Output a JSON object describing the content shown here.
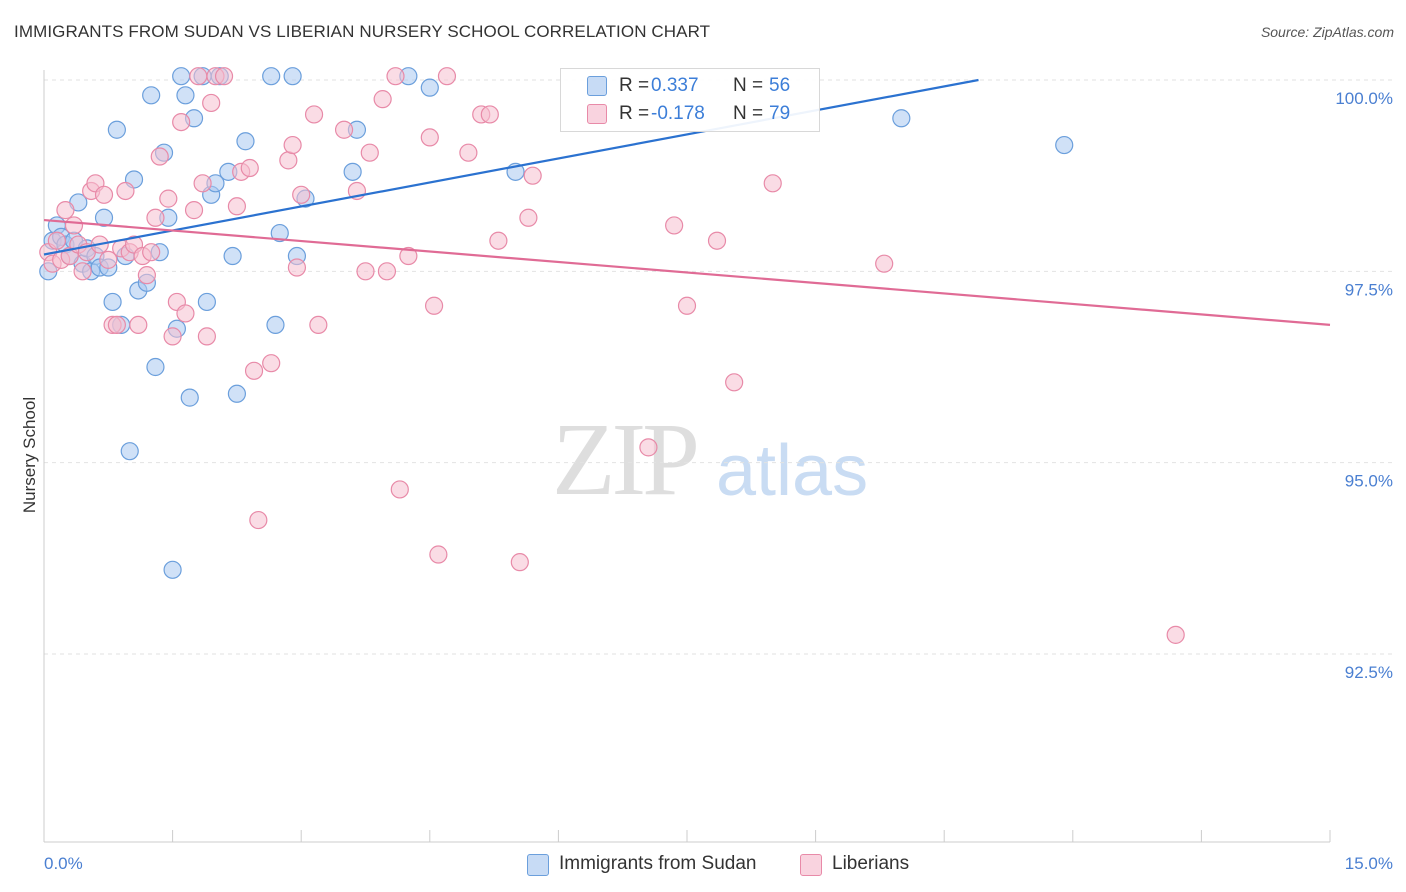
{
  "header": {
    "title": "IMMIGRANTS FROM SUDAN VS LIBERIAN NURSERY SCHOOL CORRELATION CHART",
    "source": "Source: ZipAtlas.com"
  },
  "watermark": {
    "zip": "ZIP",
    "atlas": "atlas"
  },
  "legend": {
    "rows": [
      {
        "label": "R =",
        "r": " 0.337",
        "n_label": "N =",
        "n": "56"
      },
      {
        "label": "R =",
        "r": "-0.178",
        "n_label": "N =",
        "n": "79"
      }
    ]
  },
  "bottom_legend": {
    "items": [
      "Immigrants from Sudan",
      "Liberians"
    ]
  },
  "colors": {
    "series1_fill": "#aac8f0",
    "series1_stroke": "#6b9fdc",
    "series1_line": "#2b72d0",
    "series2_fill": "#f6bfd0",
    "series2_stroke": "#e88aa8",
    "series2_line": "#e06b95",
    "tick_text": "#4a7fd1"
  },
  "chart_data": {
    "type": "scatter",
    "title": "IMMIGRANTS FROM SUDAN VS LIBERIAN NURSERY SCHOOL CORRELATION CHART",
    "xlabel": "",
    "ylabel": "Nursery School",
    "xlim": [
      0,
      15
    ],
    "ylim": [
      90.0,
      100.4
    ],
    "x_tick_labels": [
      "0.0%",
      "15.0%"
    ],
    "y_ticks": [
      92.5,
      95.0,
      97.5,
      100.0
    ],
    "y_tick_labels": [
      "92.5%",
      "95.0%",
      "97.5%",
      "100.0%"
    ],
    "grid": "horizontal dashed",
    "legend_position": "top-center",
    "series": [
      {
        "name": "Immigrants from Sudan",
        "r": 0.337,
        "n": 56,
        "trend": {
          "x": [
            0.0,
            10.9
          ],
          "y": [
            97.72,
            100.0
          ]
        },
        "points": [
          [
            0.05,
            97.5
          ],
          [
            0.1,
            97.9
          ],
          [
            0.15,
            98.1
          ],
          [
            0.2,
            97.95
          ],
          [
            0.25,
            97.85
          ],
          [
            0.3,
            97.7
          ],
          [
            0.35,
            97.9
          ],
          [
            0.4,
            98.4
          ],
          [
            0.45,
            97.6
          ],
          [
            0.5,
            97.8
          ],
          [
            0.55,
            97.5
          ],
          [
            0.6,
            97.7
          ],
          [
            0.65,
            97.55
          ],
          [
            0.7,
            98.2
          ],
          [
            0.75,
            97.55
          ],
          [
            0.8,
            97.1
          ],
          [
            0.85,
            99.35
          ],
          [
            0.9,
            96.8
          ],
          [
            0.95,
            97.7
          ],
          [
            1.0,
            95.15
          ],
          [
            1.05,
            98.7
          ],
          [
            1.1,
            97.25
          ],
          [
            1.2,
            97.35
          ],
          [
            1.25,
            99.8
          ],
          [
            1.3,
            96.25
          ],
          [
            1.35,
            97.75
          ],
          [
            1.4,
            99.05
          ],
          [
            1.45,
            98.2
          ],
          [
            1.5,
            93.6
          ],
          [
            1.55,
            96.75
          ],
          [
            1.6,
            100.05
          ],
          [
            1.65,
            99.8
          ],
          [
            1.7,
            95.85
          ],
          [
            1.75,
            99.5
          ],
          [
            1.85,
            100.05
          ],
          [
            1.9,
            97.1
          ],
          [
            1.95,
            98.5
          ],
          [
            2.0,
            98.65
          ],
          [
            2.05,
            100.05
          ],
          [
            2.15,
            98.8
          ],
          [
            2.2,
            97.7
          ],
          [
            2.25,
            95.9
          ],
          [
            2.35,
            99.2
          ],
          [
            2.65,
            100.05
          ],
          [
            2.7,
            96.8
          ],
          [
            2.75,
            98.0
          ],
          [
            2.9,
            100.05
          ],
          [
            2.95,
            97.7
          ],
          [
            3.05,
            98.45
          ],
          [
            3.6,
            98.8
          ],
          [
            3.65,
            99.35
          ],
          [
            4.25,
            100.05
          ],
          [
            4.5,
            99.9
          ],
          [
            5.5,
            98.8
          ],
          [
            10.0,
            99.5
          ],
          [
            11.9,
            99.15
          ]
        ]
      },
      {
        "name": "Liberians",
        "r": -0.178,
        "n": 79,
        "trend": {
          "x": [
            0.0,
            15.0
          ],
          "y": [
            98.17,
            96.8
          ]
        },
        "points": [
          [
            0.05,
            97.75
          ],
          [
            0.1,
            97.6
          ],
          [
            0.15,
            97.9
          ],
          [
            0.2,
            97.65
          ],
          [
            0.25,
            98.3
          ],
          [
            0.3,
            97.7
          ],
          [
            0.35,
            98.1
          ],
          [
            0.4,
            97.85
          ],
          [
            0.45,
            97.5
          ],
          [
            0.5,
            97.75
          ],
          [
            0.55,
            98.55
          ],
          [
            0.6,
            98.65
          ],
          [
            0.65,
            97.85
          ],
          [
            0.7,
            98.5
          ],
          [
            0.75,
            97.65
          ],
          [
            0.8,
            96.8
          ],
          [
            0.85,
            96.8
          ],
          [
            0.9,
            97.8
          ],
          [
            0.95,
            98.55
          ],
          [
            1.0,
            97.75
          ],
          [
            1.05,
            97.85
          ],
          [
            1.1,
            96.8
          ],
          [
            1.15,
            97.7
          ],
          [
            1.2,
            97.45
          ],
          [
            1.25,
            97.75
          ],
          [
            1.3,
            98.2
          ],
          [
            1.35,
            99.0
          ],
          [
            1.45,
            98.45
          ],
          [
            1.5,
            96.65
          ],
          [
            1.55,
            97.1
          ],
          [
            1.6,
            99.45
          ],
          [
            1.65,
            96.95
          ],
          [
            1.75,
            98.3
          ],
          [
            1.8,
            100.05
          ],
          [
            1.85,
            98.65
          ],
          [
            1.9,
            96.65
          ],
          [
            1.95,
            99.7
          ],
          [
            2.0,
            100.05
          ],
          [
            2.1,
            100.05
          ],
          [
            2.25,
            98.35
          ],
          [
            2.3,
            98.8
          ],
          [
            2.4,
            98.85
          ],
          [
            2.45,
            96.2
          ],
          [
            2.5,
            94.25
          ],
          [
            2.65,
            96.3
          ],
          [
            2.85,
            98.95
          ],
          [
            2.9,
            99.15
          ],
          [
            2.95,
            97.55
          ],
          [
            3.0,
            98.5
          ],
          [
            3.15,
            99.55
          ],
          [
            3.2,
            96.8
          ],
          [
            3.5,
            99.35
          ],
          [
            3.65,
            98.55
          ],
          [
            3.75,
            97.5
          ],
          [
            3.8,
            99.05
          ],
          [
            3.95,
            99.75
          ],
          [
            4.0,
            97.5
          ],
          [
            4.1,
            100.05
          ],
          [
            4.15,
            94.65
          ],
          [
            4.25,
            97.7
          ],
          [
            4.5,
            99.25
          ],
          [
            4.55,
            97.05
          ],
          [
            4.6,
            93.8
          ],
          [
            4.7,
            100.05
          ],
          [
            4.95,
            99.05
          ],
          [
            5.1,
            99.55
          ],
          [
            5.2,
            99.55
          ],
          [
            5.3,
            97.9
          ],
          [
            5.55,
            93.7
          ],
          [
            5.65,
            98.2
          ],
          [
            5.7,
            98.75
          ],
          [
            7.05,
            95.2
          ],
          [
            7.35,
            98.1
          ],
          [
            7.5,
            97.05
          ],
          [
            7.85,
            97.9
          ],
          [
            8.05,
            96.05
          ],
          [
            8.5,
            98.65
          ],
          [
            9.8,
            97.6
          ],
          [
            13.2,
            92.75
          ]
        ]
      }
    ]
  },
  "_comment_extra": ""
}
